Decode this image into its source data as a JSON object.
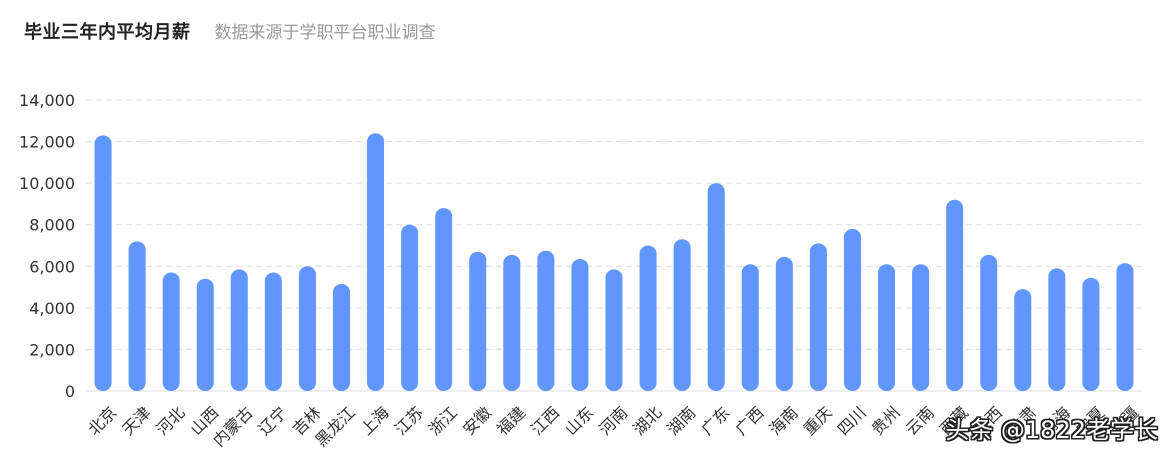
{
  "header": {
    "title": "毕业三年内平均月薪",
    "subtitle": "数据来源于学职平台职业调查"
  },
  "watermark": "头条 @1822老学长",
  "colors": {
    "bar": "#6096fd",
    "grid": "#dcdcdc",
    "axis_text": "#333333"
  },
  "chart_data": {
    "type": "bar",
    "title": "毕业三年内平均月薪",
    "subtitle": "数据来源于学职平台职业调查",
    "xlabel": "",
    "ylabel": "",
    "ylim": [
      0,
      14000
    ],
    "yticks": [
      0,
      2000,
      4000,
      6000,
      8000,
      10000,
      12000,
      14000
    ],
    "ytick_labels": [
      "0",
      "2,000",
      "4,000",
      "6,000",
      "8,000",
      "10,000",
      "12,000",
      "14,000"
    ],
    "grid": true,
    "legend": "none",
    "categories": [
      "北京",
      "天津",
      "河北",
      "山西",
      "内蒙古",
      "辽宁",
      "吉林",
      "黑龙江",
      "上海",
      "江苏",
      "浙江",
      "安徽",
      "福建",
      "江西",
      "山东",
      "河南",
      "湖北",
      "湖南",
      "广东",
      "广西",
      "海南",
      "重庆",
      "四川",
      "贵州",
      "云南",
      "西藏",
      "陕西",
      "甘肃",
      "青海",
      "宁夏",
      "新疆"
    ],
    "values": [
      12300,
      7200,
      5700,
      5400,
      5850,
      5700,
      6000,
      5150,
      12400,
      8000,
      8800,
      6700,
      6550,
      6750,
      6350,
      5850,
      7000,
      7300,
      10000,
      6100,
      6450,
      7100,
      7800,
      6100,
      6100,
      9200,
      6550,
      4900,
      5900,
      5450,
      6150
    ]
  }
}
